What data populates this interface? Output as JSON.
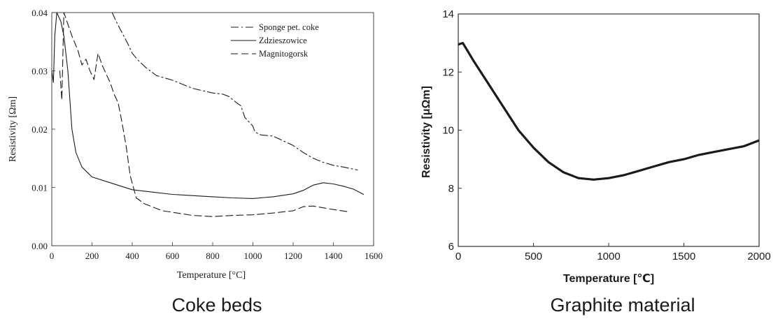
{
  "colors": {
    "ink": "#1a1a1a",
    "frame": "#333333"
  },
  "chart_data": [
    {
      "type": "line",
      "caption": "Coke beds",
      "xlabel": "Temperature [°C]",
      "ylabel": "Resistivity [Ωm]",
      "xlim": [
        0,
        1600
      ],
      "ylim": [
        0.0,
        0.04
      ],
      "xticks": [
        0,
        200,
        400,
        600,
        800,
        1000,
        1200,
        1400,
        1600
      ],
      "yticks": [
        0.0,
        0.01,
        0.02,
        0.03,
        0.04
      ],
      "ytick_labels": [
        "0.00",
        "0.01",
        "0.02",
        "0.03",
        "0.04"
      ],
      "grid": false,
      "legend_position": "top-right",
      "series": [
        {
          "name": "Sponge pet. coke",
          "dash": "dashdot",
          "points": [
            [
              300,
              0.04
            ],
            [
              320,
              0.0385
            ],
            [
              350,
              0.0365
            ],
            [
              380,
              0.0345
            ],
            [
              400,
              0.033
            ],
            [
              430,
              0.0318
            ],
            [
              470,
              0.0305
            ],
            [
              520,
              0.0292
            ],
            [
              600,
              0.0284
            ],
            [
              700,
              0.027
            ],
            [
              800,
              0.0262
            ],
            [
              850,
              0.026
            ],
            [
              880,
              0.0256
            ],
            [
              920,
              0.0245
            ],
            [
              940,
              0.024
            ],
            [
              960,
              0.022
            ],
            [
              1000,
              0.0205
            ],
            [
              1010,
              0.0195
            ],
            [
              1040,
              0.019
            ],
            [
              1100,
              0.0188
            ],
            [
              1150,
              0.018
            ],
            [
              1200,
              0.0172
            ],
            [
              1250,
              0.016
            ],
            [
              1300,
              0.015
            ],
            [
              1350,
              0.0143
            ],
            [
              1400,
              0.0138
            ],
            [
              1450,
              0.0135
            ],
            [
              1520,
              0.013
            ]
          ]
        },
        {
          "name": "Zdzieszowice",
          "dash": "solid",
          "points": [
            [
              0,
              0.03
            ],
            [
              8,
              0.028
            ],
            [
              15,
              0.036
            ],
            [
              25,
              0.04
            ],
            [
              45,
              0.0385
            ],
            [
              60,
              0.036
            ],
            [
              80,
              0.03
            ],
            [
              100,
              0.02
            ],
            [
              120,
              0.016
            ],
            [
              150,
              0.0135
            ],
            [
              200,
              0.0118
            ],
            [
              300,
              0.0107
            ],
            [
              400,
              0.0096
            ],
            [
              500,
              0.0092
            ],
            [
              600,
              0.0088
            ],
            [
              800,
              0.0084
            ],
            [
              900,
              0.0082
            ],
            [
              1000,
              0.0081
            ],
            [
              1100,
              0.0084
            ],
            [
              1200,
              0.0089
            ],
            [
              1250,
              0.0095
            ],
            [
              1300,
              0.0104
            ],
            [
              1350,
              0.0108
            ],
            [
              1400,
              0.0106
            ],
            [
              1450,
              0.0102
            ],
            [
              1500,
              0.0097
            ],
            [
              1550,
              0.0088
            ]
          ]
        },
        {
          "name": "Magnitogorsk",
          "dash": "dashed",
          "points": [
            [
              40,
              0.03
            ],
            [
              50,
              0.025
            ],
            [
              60,
              0.04
            ],
            [
              80,
              0.038
            ],
            [
              100,
              0.036
            ],
            [
              130,
              0.0335
            ],
            [
              150,
              0.031
            ],
            [
              170,
              0.032
            ],
            [
              190,
              0.03
            ],
            [
              210,
              0.0285
            ],
            [
              230,
              0.033
            ],
            [
              250,
              0.031
            ],
            [
              270,
              0.0295
            ],
            [
              290,
              0.028
            ],
            [
              310,
              0.026
            ],
            [
              330,
              0.0245
            ],
            [
              350,
              0.021
            ],
            [
              370,
              0.017
            ],
            [
              390,
              0.012
            ],
            [
              420,
              0.0082
            ],
            [
              460,
              0.0072
            ],
            [
              550,
              0.006
            ],
            [
              700,
              0.0052
            ],
            [
              800,
              0.005
            ],
            [
              900,
              0.0052
            ],
            [
              1000,
              0.0053
            ],
            [
              1100,
              0.0056
            ],
            [
              1200,
              0.006
            ],
            [
              1250,
              0.0067
            ],
            [
              1300,
              0.0068
            ],
            [
              1350,
              0.0065
            ],
            [
              1400,
              0.0062
            ],
            [
              1480,
              0.0058
            ]
          ]
        }
      ]
    },
    {
      "type": "line",
      "caption": "Graphite material",
      "xlabel": "Temperature [℃]",
      "ylabel": "Resistivity [μΩm]",
      "xlim": [
        0,
        2000
      ],
      "ylim": [
        6,
        14
      ],
      "xticks": [
        0,
        500,
        1000,
        1500,
        2000
      ],
      "yticks": [
        6,
        8,
        10,
        12,
        14
      ],
      "ytick_labels": [
        "6",
        "8",
        "10",
        "12",
        "14"
      ],
      "grid": false,
      "series": [
        {
          "dash": "solid",
          "points": [
            [
              0,
              12.95
            ],
            [
              30,
              13.0
            ],
            [
              100,
              12.4
            ],
            [
              200,
              11.6
            ],
            [
              300,
              10.8
            ],
            [
              400,
              10.0
            ],
            [
              500,
              9.4
            ],
            [
              600,
              8.9
            ],
            [
              700,
              8.55
            ],
            [
              800,
              8.35
            ],
            [
              900,
              8.3
            ],
            [
              1000,
              8.35
            ],
            [
              1100,
              8.45
            ],
            [
              1200,
              8.6
            ],
            [
              1300,
              8.75
            ],
            [
              1400,
              8.9
            ],
            [
              1500,
              9.0
            ],
            [
              1600,
              9.15
            ],
            [
              1700,
              9.25
            ],
            [
              1800,
              9.35
            ],
            [
              1900,
              9.45
            ],
            [
              2000,
              9.65
            ]
          ]
        }
      ]
    }
  ]
}
